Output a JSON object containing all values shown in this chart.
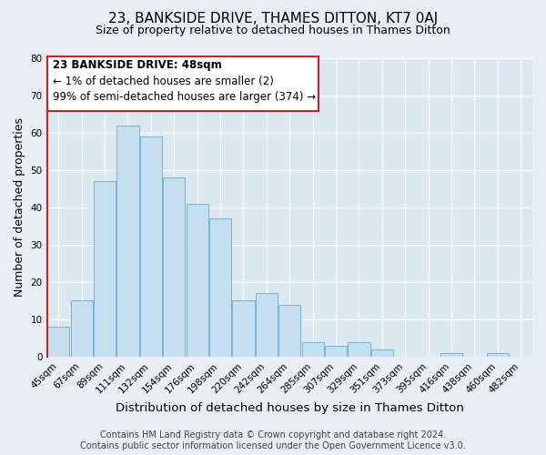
{
  "title": "23, BANKSIDE DRIVE, THAMES DITTON, KT7 0AJ",
  "subtitle": "Size of property relative to detached houses in Thames Ditton",
  "xlabel": "Distribution of detached houses by size in Thames Ditton",
  "ylabel": "Number of detached properties",
  "bar_labels": [
    "45sqm",
    "67sqm",
    "89sqm",
    "111sqm",
    "132sqm",
    "154sqm",
    "176sqm",
    "198sqm",
    "220sqm",
    "242sqm",
    "264sqm",
    "285sqm",
    "307sqm",
    "329sqm",
    "351sqm",
    "373sqm",
    "395sqm",
    "416sqm",
    "438sqm",
    "460sqm",
    "482sqm"
  ],
  "bar_values": [
    8,
    15,
    47,
    62,
    59,
    48,
    41,
    37,
    15,
    17,
    14,
    4,
    3,
    4,
    2,
    0,
    0,
    1,
    0,
    1,
    0
  ],
  "bar_color": "#c5dff0",
  "bar_edge_color": "#7ab3d4",
  "annotation_box_text_line1": "23 BANKSIDE DRIVE: 48sqm",
  "annotation_box_text_line2": "← 1% of detached houses are smaller (2)",
  "annotation_box_text_line3": "99% of semi-detached houses are larger (374) →",
  "ylim": [
    0,
    80
  ],
  "yticks": [
    0,
    10,
    20,
    30,
    40,
    50,
    60,
    70,
    80
  ],
  "footer_line1": "Contains HM Land Registry data © Crown copyright and database right 2024.",
  "footer_line2": "Contains public sector information licensed under the Open Government Licence v3.0.",
  "background_color": "#e8eef4",
  "plot_background_color": "#dce8f0",
  "red_color": "#cc2222",
  "title_fontsize": 11,
  "subtitle_fontsize": 9,
  "annotation_fontsize": 8.5,
  "footer_fontsize": 7,
  "tick_fontsize": 7.5,
  "ylabel_fontsize": 9,
  "xlabel_fontsize": 9.5
}
